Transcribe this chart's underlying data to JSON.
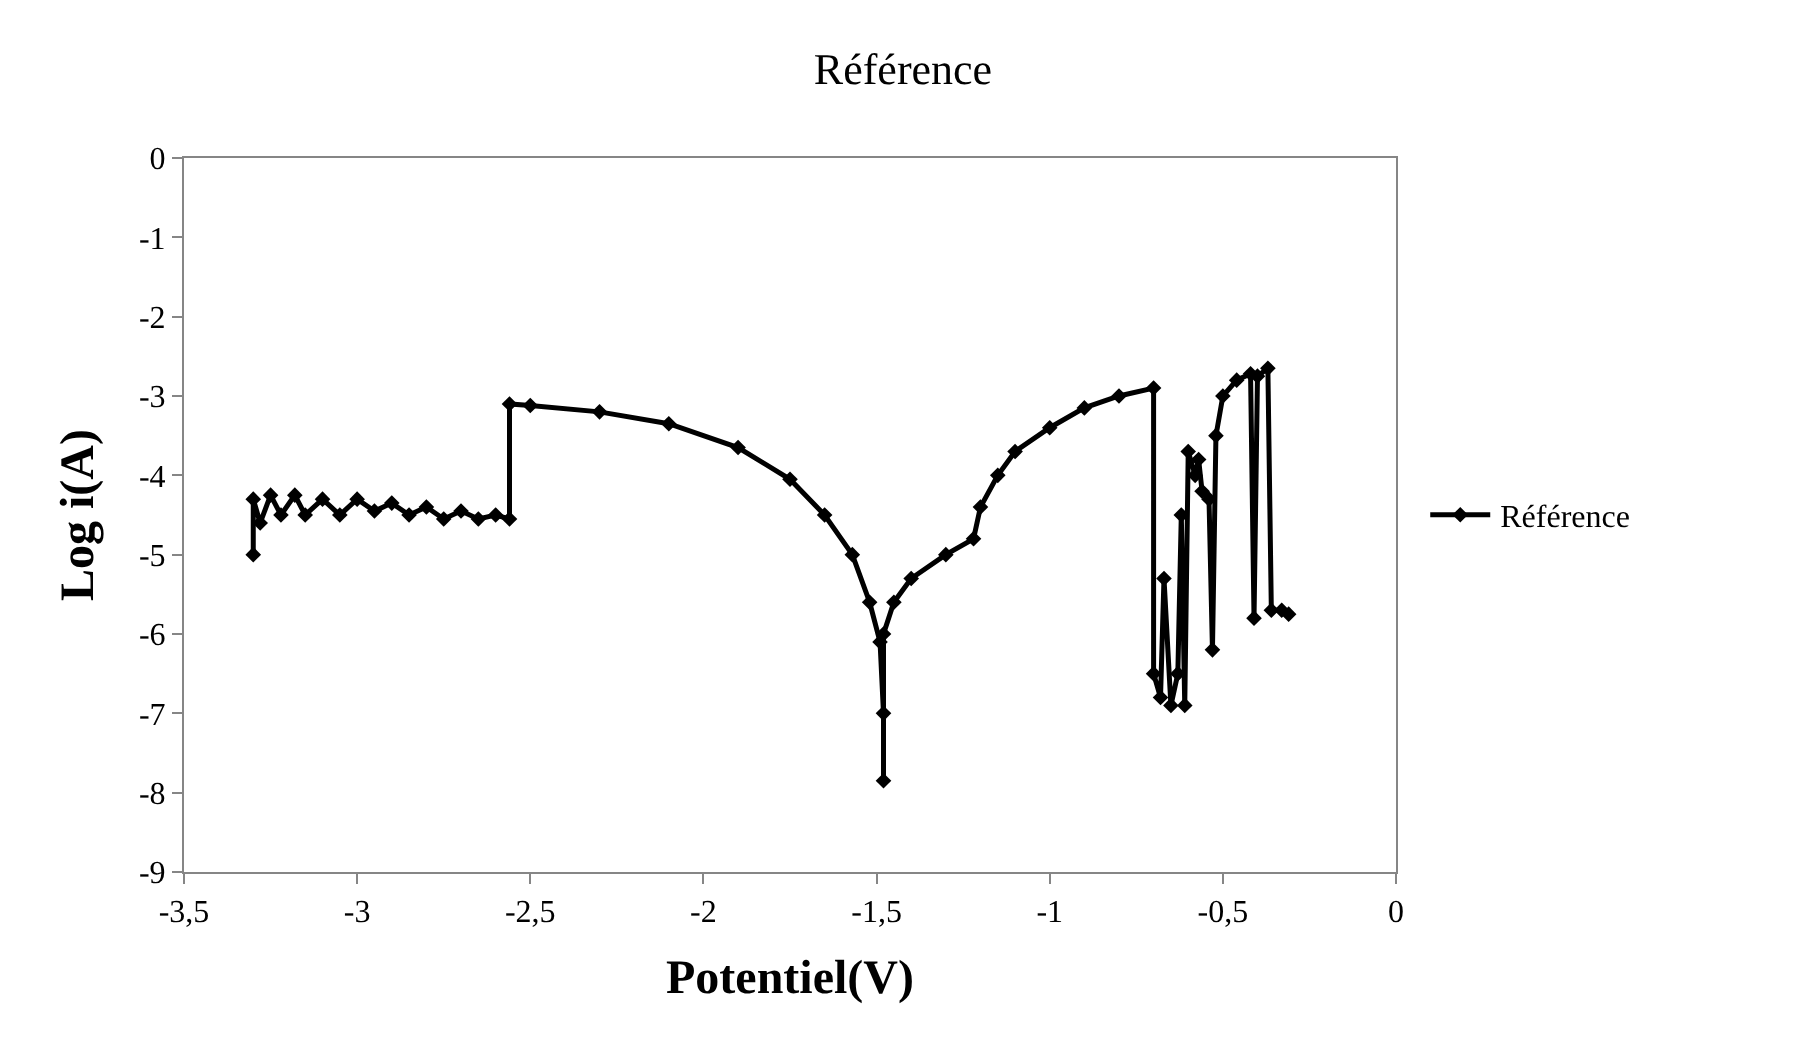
{
  "chart_data": {
    "type": "line",
    "title": "Référence",
    "xlabel": "Potentiel(V)",
    "ylabel": "Log i(A)",
    "xlim": [
      -3.5,
      0
    ],
    "xticks": [
      {
        "value": -3.5,
        "label": "-3,5"
      },
      -3,
      {
        "value": -2.5,
        "label": "-2,5"
      },
      -2,
      {
        "value": -1.5,
        "label": "-1,5"
      },
      -1,
      {
        "value": -0.5,
        "label": "-0,5"
      },
      0
    ],
    "ylim": [
      -9,
      0
    ],
    "yticks": [
      -9,
      -8,
      -7,
      -6,
      -5,
      -4,
      -3,
      -2,
      -1,
      0
    ],
    "legend": "right",
    "marker": "diamond",
    "line_style": "solid",
    "series": [
      {
        "name": "Référence",
        "color": "#000000",
        "x": [
          -3.3,
          -3.3,
          -3.28,
          -3.25,
          -3.22,
          -3.18,
          -3.15,
          -3.1,
          -3.05,
          -3.0,
          -2.95,
          -2.9,
          -2.85,
          -2.8,
          -2.75,
          -2.7,
          -2.65,
          -2.6,
          -2.56,
          -2.56,
          -2.5,
          -2.3,
          -2.1,
          -1.9,
          -1.75,
          -1.65,
          -1.57,
          -1.52,
          -1.49,
          -1.48,
          -1.48,
          -1.48,
          -1.45,
          -1.4,
          -1.3,
          -1.22,
          -1.2,
          -1.15,
          -1.1,
          -1.0,
          -0.9,
          -0.8,
          -0.7,
          -0.7,
          -0.68,
          -0.67,
          -0.65,
          -0.63,
          -0.62,
          -0.61,
          -0.6,
          -0.58,
          -0.57,
          -0.56,
          -0.54,
          -0.53,
          -0.52,
          -0.5,
          -0.46,
          -0.42,
          -0.41,
          -0.4,
          -0.37,
          -0.36,
          -0.33,
          -0.31
        ],
        "values": [
          -5.0,
          -4.3,
          -4.6,
          -4.25,
          -4.5,
          -4.25,
          -4.5,
          -4.3,
          -4.5,
          -4.3,
          -4.45,
          -4.35,
          -4.5,
          -4.4,
          -4.55,
          -4.45,
          -4.55,
          -4.5,
          -4.55,
          -3.1,
          -3.12,
          -3.2,
          -3.35,
          -3.65,
          -4.05,
          -4.5,
          -5.0,
          -5.6,
          -6.1,
          -7.0,
          -7.85,
          -6.0,
          -5.6,
          -5.3,
          -5.0,
          -4.8,
          -4.4,
          -4.0,
          -3.7,
          -3.4,
          -3.15,
          -3.0,
          -2.9,
          -6.5,
          -6.8,
          -5.3,
          -6.9,
          -6.5,
          -4.5,
          -6.9,
          -3.7,
          -4.0,
          -3.8,
          -4.2,
          -4.3,
          -6.2,
          -3.5,
          -3.0,
          -2.8,
          -2.72,
          -5.8,
          -2.75,
          -2.65,
          -5.7,
          -5.7,
          -5.75
        ]
      }
    ]
  }
}
